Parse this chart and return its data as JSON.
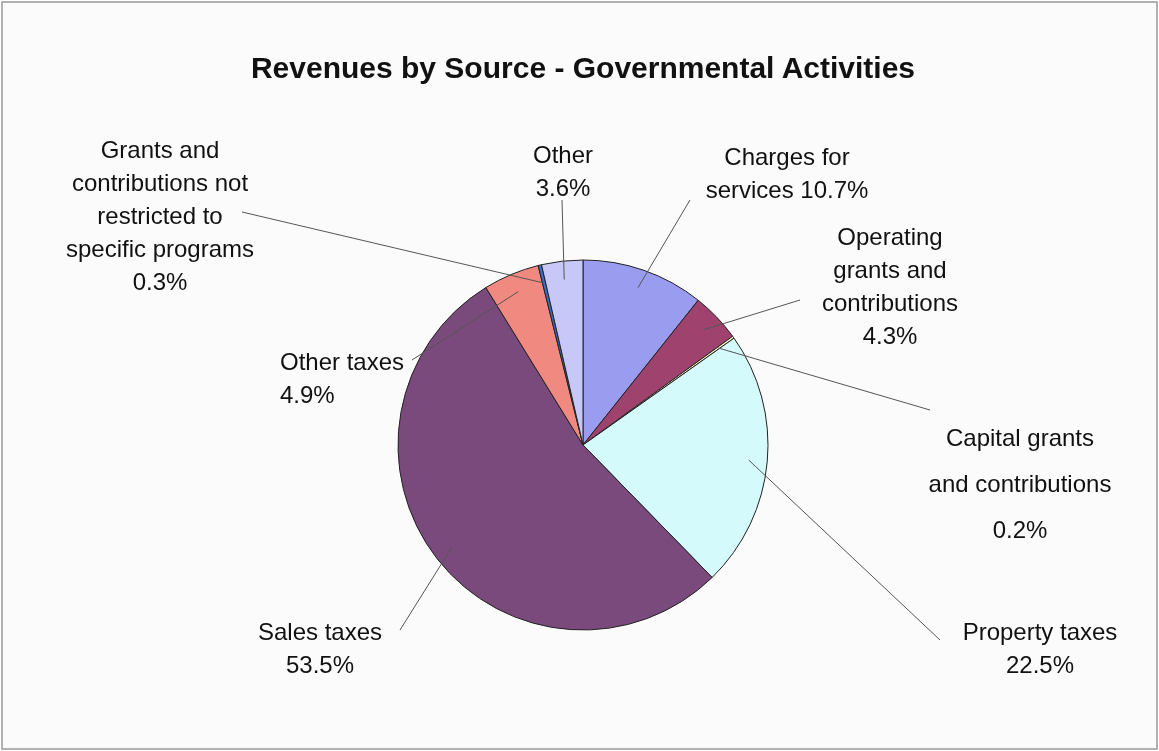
{
  "chart_data": {
    "type": "pie",
    "title": "Revenues by Source - Governmental Activities",
    "categories": [
      "Charges for services",
      "Operating grants and contributions",
      "Capital grants and contributions",
      "Property taxes",
      "Sales taxes",
      "Other taxes",
      "Grants and contributions not restricted to specific programs",
      "Other"
    ],
    "values": [
      10.7,
      4.3,
      0.2,
      22.5,
      53.5,
      4.9,
      0.3,
      3.6
    ],
    "value_labels": [
      "10.7%",
      "4.3%",
      "0.2%",
      "22.5%",
      "53.5%",
      "4.9%",
      "0.3%",
      "3.6%"
    ],
    "colors": [
      "#9a9cf0",
      "#a0426e",
      "#fffccc",
      "#d4fafc",
      "#7b4a7c",
      "#f08a80",
      "#3a6ec8",
      "#c8c8f8"
    ]
  }
}
